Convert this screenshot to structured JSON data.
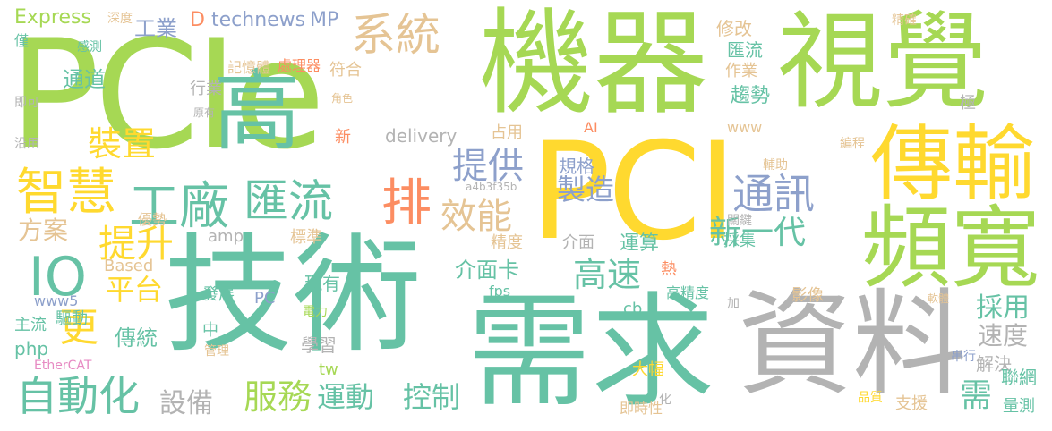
{
  "colors": {
    "green": "#66c2a5",
    "lime": "#a6d854",
    "yellow": "#ffd92f",
    "orange": "#fc8d62",
    "tan": "#e5c494",
    "gray": "#b3b3b3",
    "blue": "#8da0cb",
    "pink": "#e78ac3"
  },
  "words": [
    "PCIe",
    "PCI",
    "技術",
    "需求",
    "機器",
    "視覺",
    "資料",
    "頻寬",
    "傳輸",
    "高",
    "匯流",
    "智慧",
    "工廠",
    "排",
    "系統",
    "通訊",
    "新一代",
    "提升",
    "效能",
    "提供",
    "製造",
    "IO",
    "更",
    "平台",
    "自動化",
    "服務",
    "運動",
    "控制",
    "高速",
    "裝置",
    "方案",
    "傳統",
    "驅動",
    "設備",
    "介面卡",
    "採用",
    "速度",
    "解決",
    "聯網",
    "需",
    "Express",
    "technews",
    "MP",
    "D",
    "工業",
    "修改",
    "匯流",
    "作業",
    "趨勢",
    "delivery",
    "www5",
    "php",
    "Based",
    "amp",
    "EtherCAT",
    "fps",
    "運算",
    "介面",
    "精度",
    "採集",
    "發展",
    "PC",
    "現有",
    "學習",
    "tw",
    "影像",
    "高精度",
    "熱",
    "大幅",
    "www",
    "規格",
    "關鍵",
    "標準",
    "中",
    "cb",
    "即時性",
    "量測",
    "支援",
    "品質",
    "串行",
    "極",
    "主流",
    "僅",
    "通道",
    "記憶體",
    "處理器",
    "符合",
    "行業",
    "角色",
    "原有",
    "占用",
    "新",
    "AI",
    "a4b3f35b",
    "優勢",
    "電力",
    "管理",
    "即可",
    "沿用",
    "化",
    "精確",
    "感測",
    "深度",
    "編程",
    "軟體",
    "加",
    "輔助"
  ]
}
